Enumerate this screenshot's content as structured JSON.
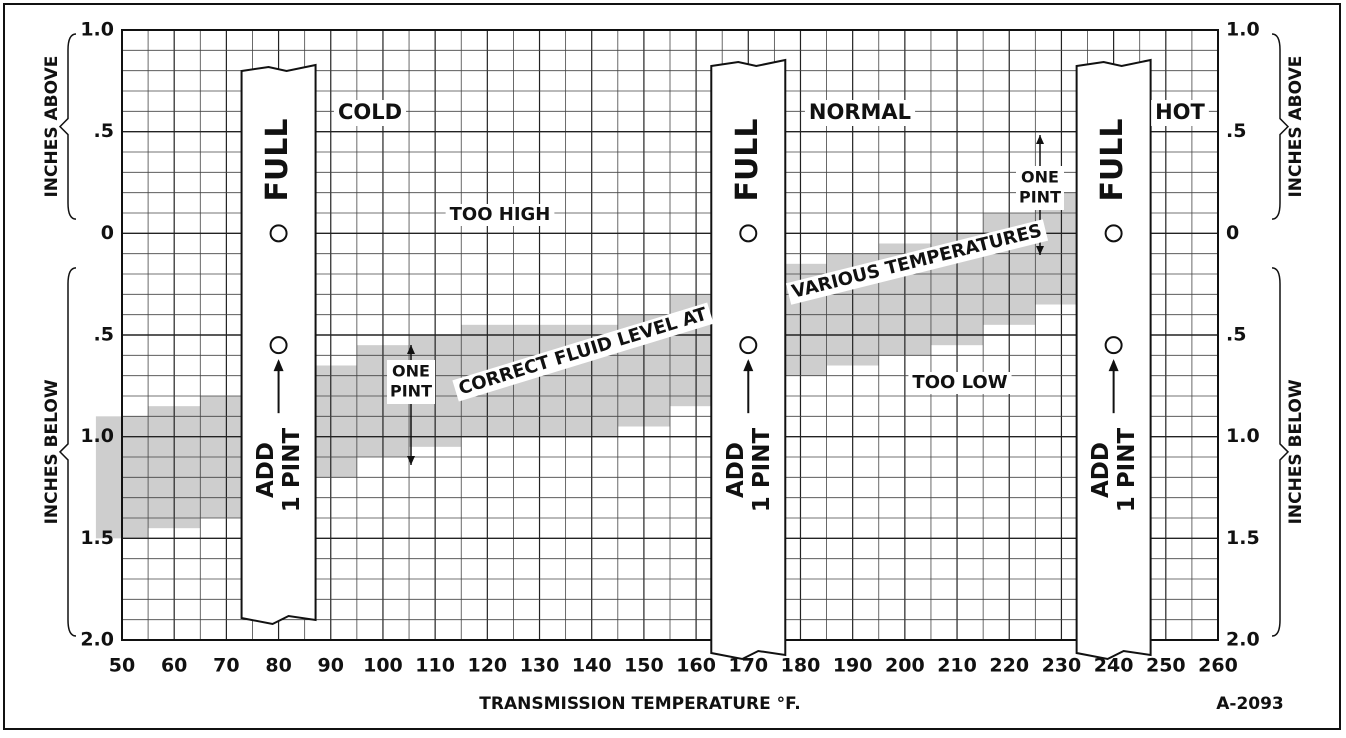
{
  "chart_data": {
    "type": "band",
    "x_label": "TRANSMISSION TEMPERATURE °F.",
    "figure_id": "A-2093",
    "y_label_above": "INCHES ABOVE",
    "y_label_below": "INCHES BELOW",
    "xlim": [
      50,
      260
    ],
    "xticks": [
      50,
      60,
      70,
      80,
      90,
      100,
      110,
      120,
      130,
      140,
      150,
      160,
      170,
      180,
      190,
      200,
      210,
      220,
      230,
      240,
      250,
      260
    ],
    "ylim": [
      -2,
      1
    ],
    "yticks": [
      {
        "value": 1,
        "label": "1.0"
      },
      {
        "value": 0.5,
        "label": ".5"
      },
      0,
      {
        "value": -0.5,
        "label": ".5"
      },
      {
        "value": -1,
        "label": "1.0"
      },
      {
        "value": -1.5,
        "label": "1.5"
      },
      {
        "value": -2,
        "label": "2.0"
      }
    ],
    "grid": true,
    "band": {
      "color": "#bdbdbd",
      "x": [
        50,
        60,
        70,
        80,
        90,
        100,
        110,
        120,
        130,
        140,
        150,
        160,
        170,
        180,
        190,
        200,
        210,
        220,
        230
      ],
      "upper": [
        -0.9,
        -0.85,
        -0.8,
        -0.75,
        -0.65,
        -0.55,
        -0.5,
        -0.45,
        -0.45,
        -0.45,
        -0.4,
        -0.3,
        -0.2,
        -0.15,
        -0.1,
        -0.05,
        0,
        0.1,
        0.2
      ],
      "lower": [
        -1.5,
        -1.45,
        -1.4,
        -1.3,
        -1.2,
        -1.1,
        -1.05,
        -1.0,
        -1.0,
        -1.0,
        -0.95,
        -0.85,
        -0.75,
        -0.7,
        -0.65,
        -0.6,
        -0.55,
        -0.45,
        -0.35
      ]
    },
    "band_label": [
      "CORRECT FLUID LEVEL AT",
      "VARIOUS TEMPERATURES"
    ],
    "dipsticks": [
      {
        "x": 80,
        "zone": "COLD"
      },
      {
        "x": 170,
        "zone": "NORMAL"
      },
      {
        "x": 240,
        "zone": "HOT"
      }
    ],
    "full_text": "FULL",
    "full_mark": 0,
    "add_mark": -0.55,
    "add_text": [
      "ADD",
      "1 PINT"
    ],
    "too_high": "TOO  HIGH",
    "too_low": "TOO  LOW",
    "one_pint": [
      "ONE",
      "PINT"
    ]
  }
}
